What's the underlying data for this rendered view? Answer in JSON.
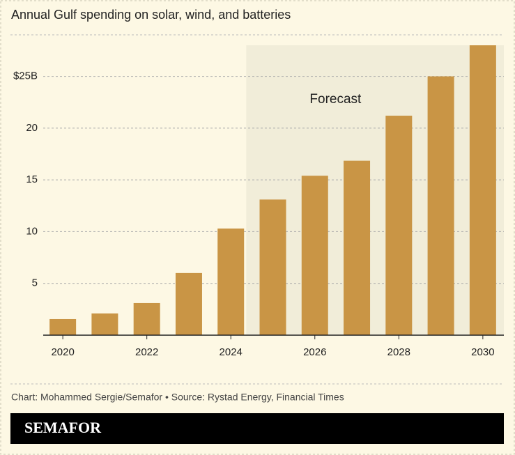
{
  "chart_data": {
    "type": "bar",
    "title": "Annual Gulf spending on solar, wind, and batteries",
    "annotation": "Forecast",
    "categories": [
      "2020",
      null,
      "2022",
      null,
      "2024",
      null,
      "2026",
      null,
      "2028",
      null,
      "2030"
    ],
    "values": [
      1.55,
      2.1,
      3.1,
      6.0,
      10.3,
      13.1,
      15.4,
      16.85,
      21.2,
      25.0,
      28.0
    ],
    "color": "#c99545",
    "ylim": [
      0,
      28
    ],
    "yticks": [
      5,
      10,
      15,
      20,
      {
        "value": 25,
        "label": "$25B"
      }
    ],
    "grid": true,
    "source": "Chart: Mohammed Sergie/Semafor • Source: Rystad Energy, Financial Times",
    "brand": "SEMAFOR"
  }
}
